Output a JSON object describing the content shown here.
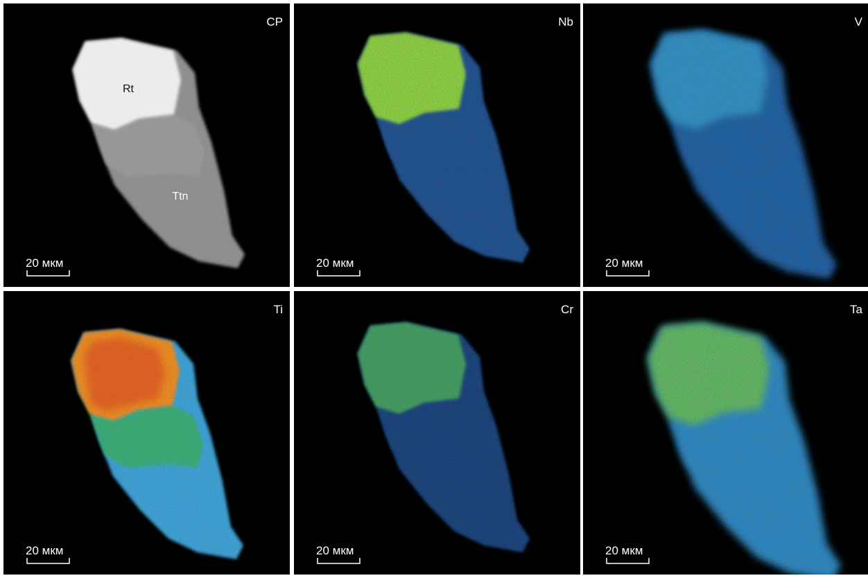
{
  "panels": [
    {
      "label": "CP",
      "scale_bar": "20 мкм",
      "annotations": [
        "Rt",
        "Ttn"
      ]
    },
    {
      "label": "Nb",
      "scale_bar": "20 мкм"
    },
    {
      "label": "V",
      "scale_bar": "20 мкм"
    },
    {
      "label": "Ti",
      "scale_bar": "20 мкм"
    },
    {
      "label": "Cr",
      "scale_bar": "20 мкм"
    },
    {
      "label": "Ta",
      "scale_bar": "20 мкм"
    }
  ]
}
